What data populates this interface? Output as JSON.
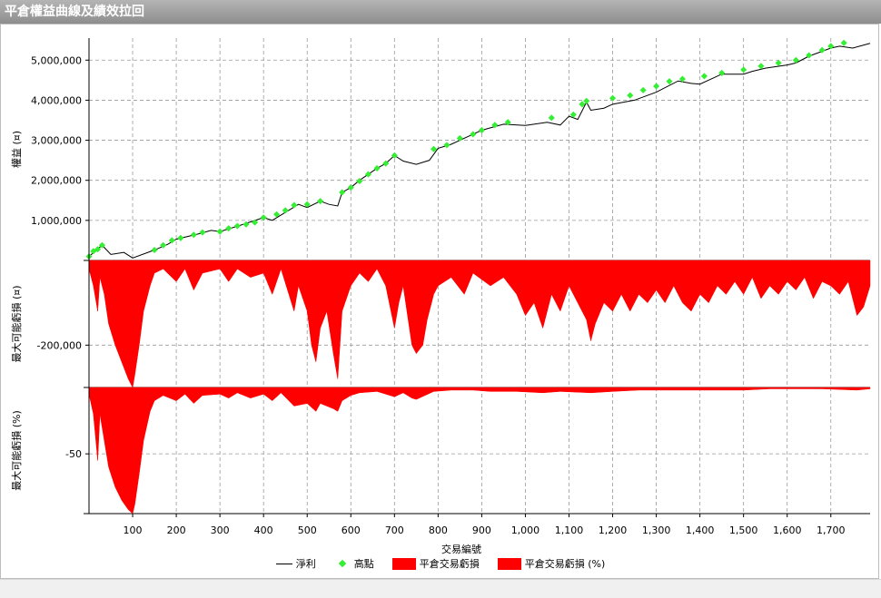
{
  "window": {
    "title": "平倉權益曲線及績效拉回"
  },
  "colors": {
    "net": "#000000",
    "high": "#33ee33",
    "dd": "#ff0000"
  },
  "chart_data": [
    {
      "type": "line",
      "ylabel": "權益 (¤)",
      "y_ticks": [
        1000000,
        2000000,
        3000000,
        4000000,
        5000000
      ],
      "y_tick_labels": [
        "1,000,000",
        "2,000,000",
        "3,000,000",
        "4,000,000",
        "5,000,000"
      ],
      "ylim": [
        0,
        5550000
      ],
      "x": [
        0,
        30,
        50,
        80,
        100,
        150,
        180,
        200,
        250,
        280,
        300,
        350,
        400,
        420,
        450,
        480,
        500,
        530,
        550,
        570,
        580,
        600,
        620,
        640,
        660,
        680,
        700,
        720,
        750,
        780,
        800,
        830,
        850,
        880,
        900,
        950,
        1000,
        1050,
        1080,
        1100,
        1120,
        1140,
        1150,
        1180,
        1200,
        1250,
        1300,
        1350,
        1380,
        1400,
        1450,
        1500,
        1520,
        1550,
        1600,
        1620,
        1650,
        1700,
        1720,
        1750,
        1790
      ],
      "series": [
        {
          "name": "淨利",
          "values": [
            100000,
            380000,
            150000,
            200000,
            60000,
            260000,
            400000,
            530000,
            660000,
            750000,
            720000,
            890000,
            1070000,
            1000000,
            1200000,
            1400000,
            1320000,
            1480000,
            1400000,
            1360000,
            1700000,
            1820000,
            2000000,
            2150000,
            2300000,
            2420000,
            2620000,
            2480000,
            2400000,
            2500000,
            2800000,
            2900000,
            3000000,
            3150000,
            3250000,
            3400000,
            3370000,
            3450000,
            3380000,
            3600000,
            3520000,
            3950000,
            3750000,
            3800000,
            3900000,
            4000000,
            4200000,
            4480000,
            4420000,
            4400000,
            4650000,
            4650000,
            4720000,
            4800000,
            4880000,
            4930000,
            5100000,
            5300000,
            5350000,
            5300000,
            5420000
          ]
        }
      ],
      "highs": [
        [
          0,
          100000
        ],
        [
          10,
          230000
        ],
        [
          20,
          280000
        ],
        [
          30,
          380000
        ],
        [
          150,
          260000
        ],
        [
          170,
          380000
        ],
        [
          190,
          500000
        ],
        [
          210,
          560000
        ],
        [
          240,
          640000
        ],
        [
          260,
          700000
        ],
        [
          300,
          720000
        ],
        [
          320,
          800000
        ],
        [
          340,
          860000
        ],
        [
          360,
          900000
        ],
        [
          380,
          950000
        ],
        [
          400,
          1070000
        ],
        [
          430,
          1150000
        ],
        [
          450,
          1250000
        ],
        [
          470,
          1380000
        ],
        [
          500,
          1400000
        ],
        [
          530,
          1480000
        ],
        [
          580,
          1700000
        ],
        [
          600,
          1820000
        ],
        [
          620,
          1980000
        ],
        [
          640,
          2150000
        ],
        [
          660,
          2300000
        ],
        [
          680,
          2420000
        ],
        [
          700,
          2620000
        ],
        [
          790,
          2780000
        ],
        [
          820,
          2880000
        ],
        [
          850,
          3050000
        ],
        [
          880,
          3150000
        ],
        [
          900,
          3250000
        ],
        [
          930,
          3380000
        ],
        [
          960,
          3450000
        ],
        [
          1060,
          3560000
        ],
        [
          1110,
          3640000
        ],
        [
          1130,
          3900000
        ],
        [
          1140,
          3980000
        ],
        [
          1200,
          4050000
        ],
        [
          1240,
          4120000
        ],
        [
          1270,
          4250000
        ],
        [
          1300,
          4350000
        ],
        [
          1330,
          4470000
        ],
        [
          1360,
          4530000
        ],
        [
          1410,
          4600000
        ],
        [
          1450,
          4680000
        ],
        [
          1500,
          4760000
        ],
        [
          1540,
          4850000
        ],
        [
          1580,
          4930000
        ],
        [
          1620,
          5000000
        ],
        [
          1650,
          5120000
        ],
        [
          1680,
          5250000
        ],
        [
          1700,
          5350000
        ],
        [
          1730,
          5430000
        ]
      ]
    },
    {
      "type": "area",
      "ylabel": "最大可能虧損 (¤)",
      "y_ticks": [
        -200000
      ],
      "y_tick_labels": [
        "-200,000"
      ],
      "ylim": [
        -300000,
        0
      ],
      "series": [
        {
          "name": "平倉交易虧損",
          "values": [
            [
              0,
              -20000
            ],
            [
              10,
              -60000
            ],
            [
              20,
              -120000
            ],
            [
              25,
              -40000
            ],
            [
              35,
              -80000
            ],
            [
              45,
              -150000
            ],
            [
              60,
              -200000
            ],
            [
              75,
              -240000
            ],
            [
              90,
              -280000
            ],
            [
              100,
              -300000
            ],
            [
              105,
              -270000
            ],
            [
              115,
              -200000
            ],
            [
              125,
              -120000
            ],
            [
              140,
              -60000
            ],
            [
              150,
              -30000
            ],
            [
              170,
              -20000
            ],
            [
              200,
              -50000
            ],
            [
              220,
              -20000
            ],
            [
              240,
              -70000
            ],
            [
              260,
              -30000
            ],
            [
              300,
              -20000
            ],
            [
              320,
              -50000
            ],
            [
              340,
              -20000
            ],
            [
              370,
              -40000
            ],
            [
              400,
              -30000
            ],
            [
              420,
              -80000
            ],
            [
              440,
              -20000
            ],
            [
              470,
              -120000
            ],
            [
              480,
              -60000
            ],
            [
              500,
              -120000
            ],
            [
              510,
              -200000
            ],
            [
              520,
              -240000
            ],
            [
              530,
              -160000
            ],
            [
              545,
              -120000
            ],
            [
              560,
              -220000
            ],
            [
              570,
              -280000
            ],
            [
              580,
              -120000
            ],
            [
              600,
              -60000
            ],
            [
              620,
              -30000
            ],
            [
              640,
              -50000
            ],
            [
              660,
              -20000
            ],
            [
              680,
              -60000
            ],
            [
              700,
              -160000
            ],
            [
              710,
              -100000
            ],
            [
              720,
              -60000
            ],
            [
              740,
              -200000
            ],
            [
              750,
              -220000
            ],
            [
              765,
              -200000
            ],
            [
              775,
              -140000
            ],
            [
              790,
              -80000
            ],
            [
              800,
              -60000
            ],
            [
              830,
              -40000
            ],
            [
              860,
              -80000
            ],
            [
              880,
              -30000
            ],
            [
              920,
              -60000
            ],
            [
              950,
              -40000
            ],
            [
              980,
              -80000
            ],
            [
              1000,
              -130000
            ],
            [
              1020,
              -100000
            ],
            [
              1040,
              -160000
            ],
            [
              1060,
              -80000
            ],
            [
              1080,
              -120000
            ],
            [
              1100,
              -60000
            ],
            [
              1120,
              -100000
            ],
            [
              1140,
              -140000
            ],
            [
              1150,
              -190000
            ],
            [
              1160,
              -150000
            ],
            [
              1180,
              -100000
            ],
            [
              1200,
              -120000
            ],
            [
              1220,
              -80000
            ],
            [
              1240,
              -120000
            ],
            [
              1260,
              -80000
            ],
            [
              1280,
              -100000
            ],
            [
              1300,
              -70000
            ],
            [
              1320,
              -100000
            ],
            [
              1340,
              -60000
            ],
            [
              1360,
              -100000
            ],
            [
              1380,
              -120000
            ],
            [
              1400,
              -80000
            ],
            [
              1420,
              -100000
            ],
            [
              1440,
              -60000
            ],
            [
              1460,
              -80000
            ],
            [
              1480,
              -50000
            ],
            [
              1500,
              -80000
            ],
            [
              1520,
              -40000
            ],
            [
              1540,
              -90000
            ],
            [
              1560,
              -60000
            ],
            [
              1580,
              -80000
            ],
            [
              1600,
              -50000
            ],
            [
              1620,
              -70000
            ],
            [
              1640,
              -40000
            ],
            [
              1660,
              -90000
            ],
            [
              1680,
              -50000
            ],
            [
              1700,
              -60000
            ],
            [
              1720,
              -80000
            ],
            [
              1740,
              -50000
            ],
            [
              1760,
              -130000
            ],
            [
              1775,
              -110000
            ],
            [
              1790,
              -60000
            ]
          ]
        }
      ]
    },
    {
      "type": "area",
      "ylabel": "最大可能虧損 (%)",
      "y_ticks": [
        -50
      ],
      "y_tick_labels": [
        "-50"
      ],
      "ylim": [
        -95,
        0
      ],
      "series": [
        {
          "name": "平倉交易虧損 (%)",
          "values": [
            [
              0,
              -5
            ],
            [
              10,
              -20
            ],
            [
              20,
              -55
            ],
            [
              25,
              -20
            ],
            [
              35,
              -40
            ],
            [
              45,
              -60
            ],
            [
              60,
              -75
            ],
            [
              75,
              -85
            ],
            [
              90,
              -92
            ],
            [
              100,
              -95
            ],
            [
              105,
              -88
            ],
            [
              115,
              -65
            ],
            [
              125,
              -40
            ],
            [
              140,
              -18
            ],
            [
              150,
              -10
            ],
            [
              170,
              -6
            ],
            [
              200,
              -10
            ],
            [
              220,
              -5
            ],
            [
              240,
              -12
            ],
            [
              260,
              -6
            ],
            [
              300,
              -5
            ],
            [
              320,
              -8
            ],
            [
              340,
              -4
            ],
            [
              370,
              -8
            ],
            [
              400,
              -5
            ],
            [
              420,
              -10
            ],
            [
              440,
              -4
            ],
            [
              470,
              -14
            ],
            [
              500,
              -12
            ],
            [
              520,
              -18
            ],
            [
              530,
              -12
            ],
            [
              560,
              -16
            ],
            [
              570,
              -18
            ],
            [
              580,
              -10
            ],
            [
              600,
              -6
            ],
            [
              620,
              -4
            ],
            [
              660,
              -3
            ],
            [
              700,
              -7
            ],
            [
              720,
              -4
            ],
            [
              740,
              -8
            ],
            [
              750,
              -9
            ],
            [
              770,
              -6
            ],
            [
              790,
              -3
            ],
            [
              830,
              -2
            ],
            [
              880,
              -2
            ],
            [
              920,
              -3
            ],
            [
              980,
              -3
            ],
            [
              1040,
              -4
            ],
            [
              1080,
              -3
            ],
            [
              1150,
              -4
            ],
            [
              1200,
              -3
            ],
            [
              1260,
              -2
            ],
            [
              1320,
              -2
            ],
            [
              1380,
              -2
            ],
            [
              1440,
              -2
            ],
            [
              1500,
              -2
            ],
            [
              1560,
              -1
            ],
            [
              1620,
              -1
            ],
            [
              1680,
              -1
            ],
            [
              1760,
              -2
            ],
            [
              1790,
              -1
            ]
          ]
        }
      ]
    }
  ],
  "x_axis": {
    "label": "交易編號",
    "ticks": [
      100,
      200,
      300,
      400,
      500,
      600,
      700,
      800,
      900,
      1000,
      1100,
      1200,
      1300,
      1400,
      1500,
      1600,
      1700
    ],
    "tick_labels": [
      "100",
      "200",
      "300",
      "400",
      "500",
      "600",
      "700",
      "800",
      "900",
      "1,000",
      "1,100",
      "1,200",
      "1,300",
      "1,400",
      "1,500",
      "1,600",
      "1,700"
    ],
    "xlim": [
      0,
      1790
    ]
  },
  "legend": {
    "net": "淨利",
    "high": "高點",
    "loss": "平倉交易虧損",
    "loss_pct": "平倉交易虧損 (%)"
  }
}
